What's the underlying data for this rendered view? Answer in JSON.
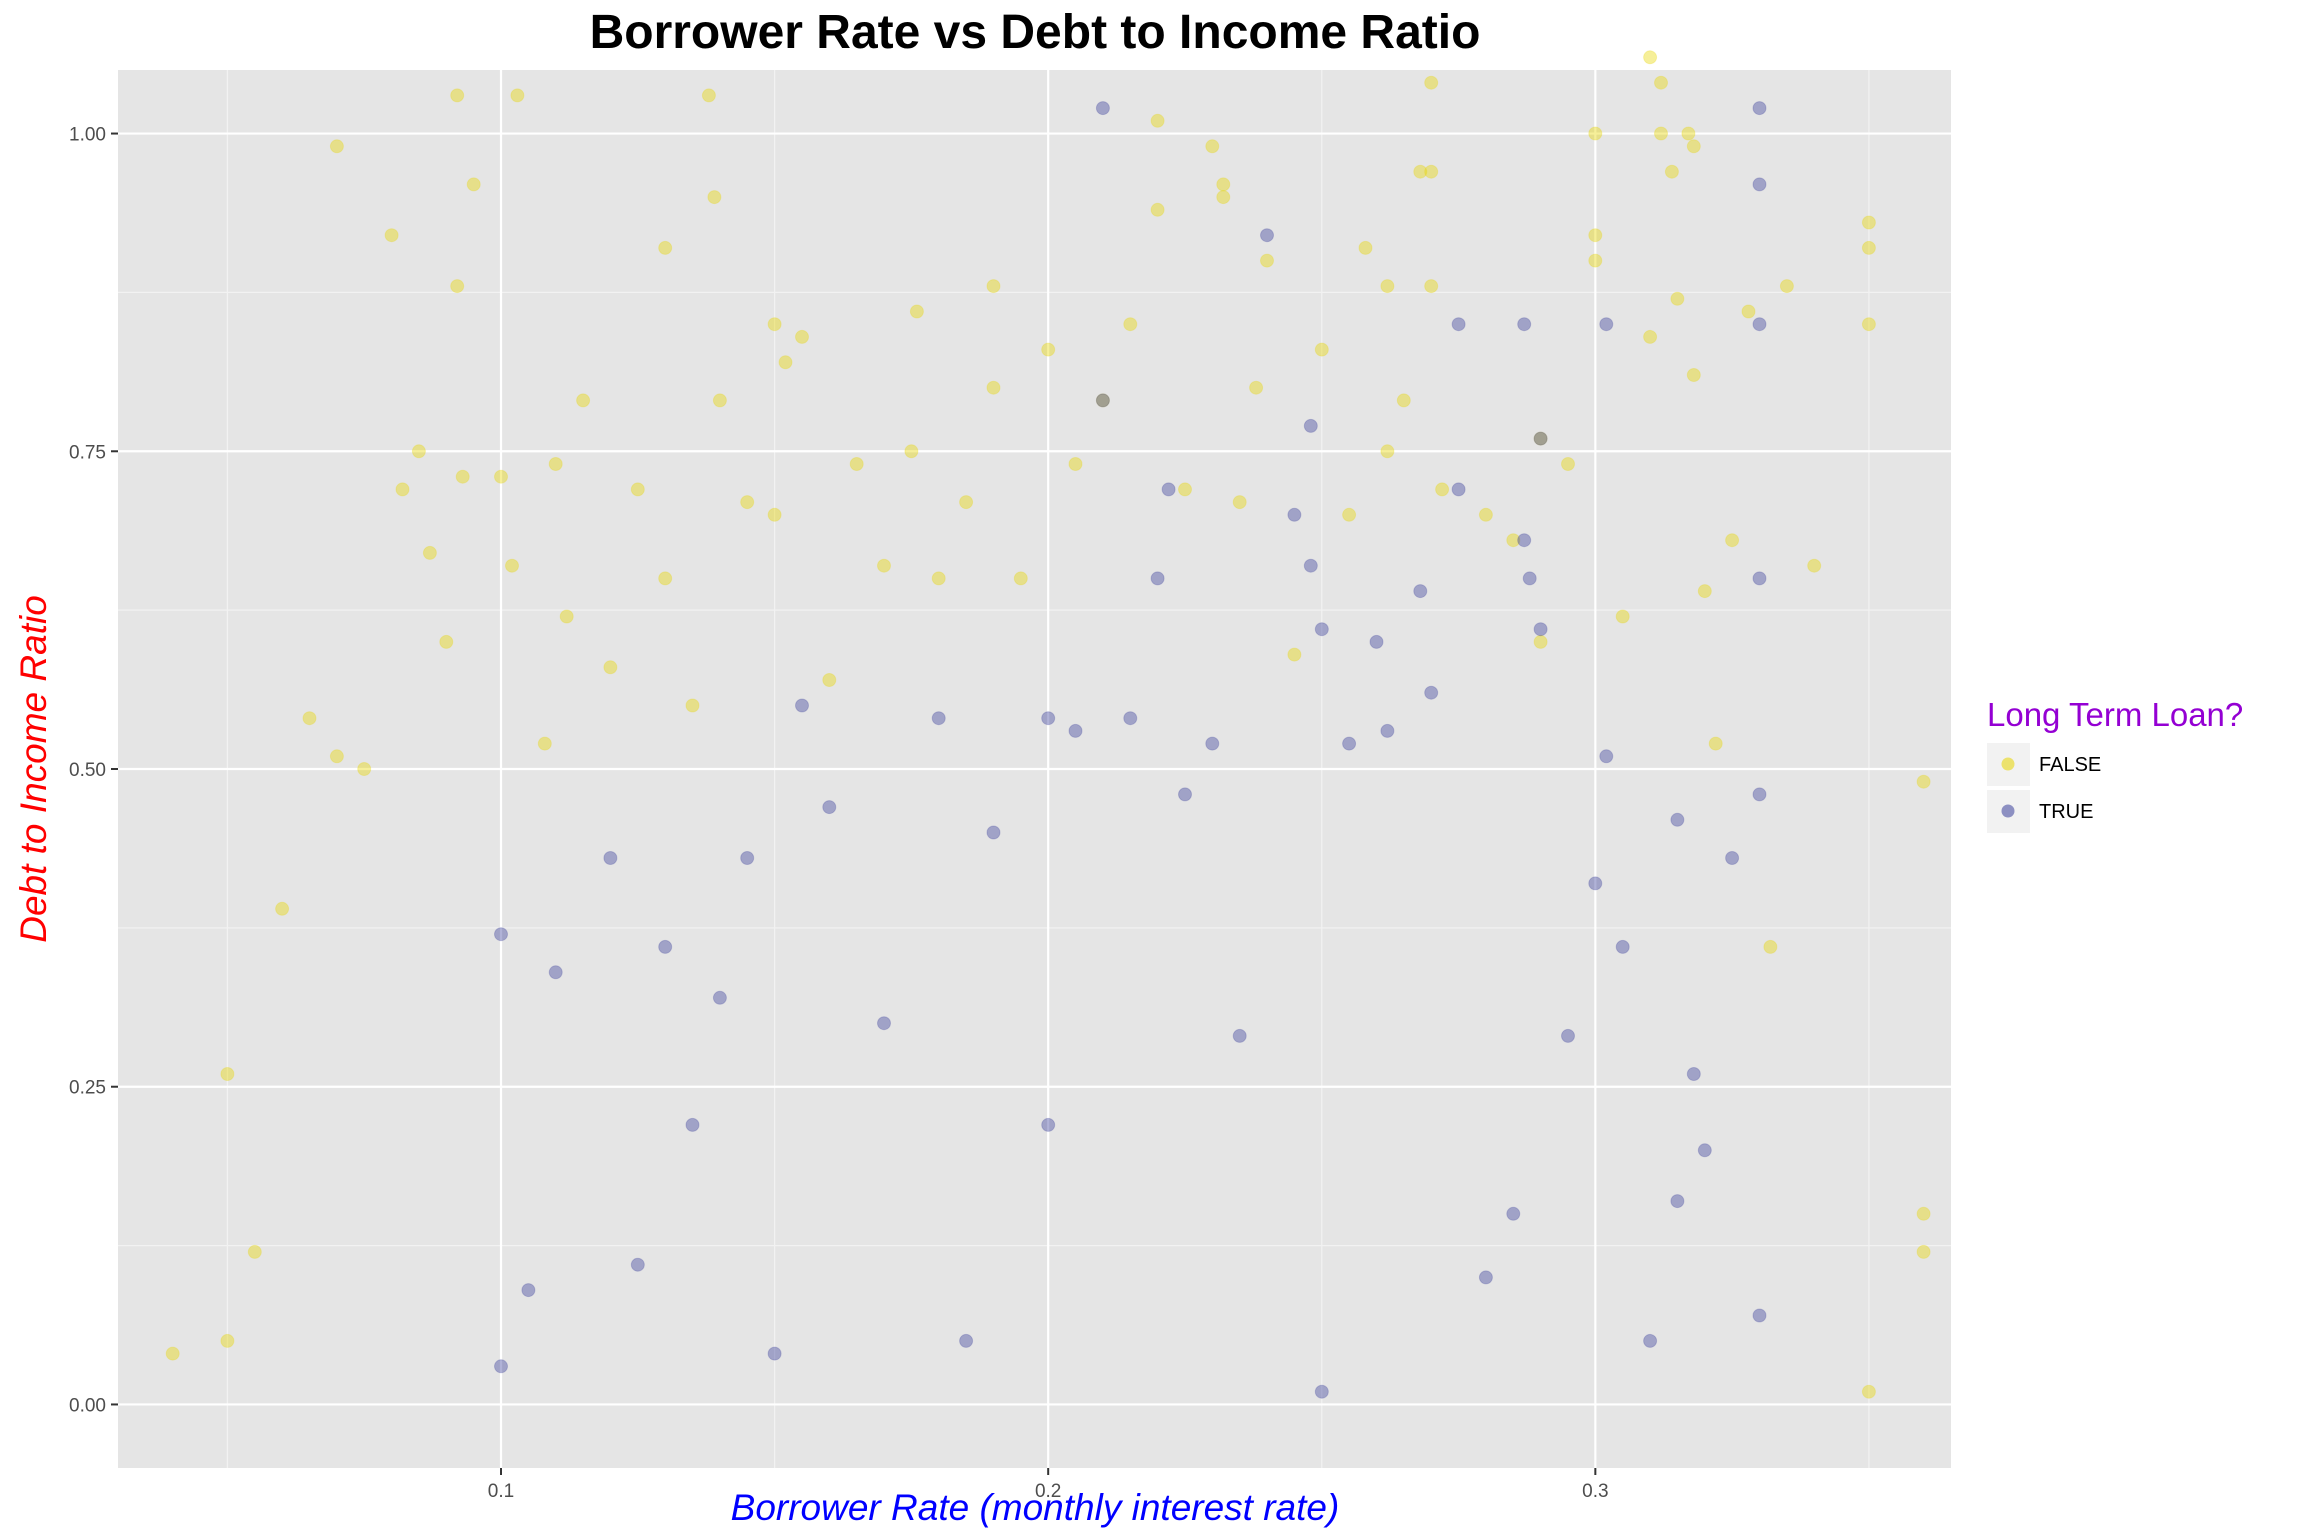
{
  "chart_data": {
    "type": "scatter",
    "title": "Borrower Rate vs Debt to Income Ratio",
    "xlabel": "Borrower Rate (monthly interest rate)",
    "ylabel": "Debt to Income Ratio",
    "xlim": [
      0.03,
      0.365
    ],
    "ylim": [
      -0.05,
      1.05
    ],
    "x_ticks": [
      0.1,
      0.2,
      0.3
    ],
    "x_tick_labels": [
      "0.1",
      "0.2",
      "0.3"
    ],
    "y_ticks": [
      0.0,
      0.25,
      0.5,
      0.75,
      1.0
    ],
    "y_tick_labels": [
      "0.00",
      "0.25",
      "0.50",
      "0.75",
      "1.00"
    ],
    "grid": true,
    "point_alpha": 0.4,
    "legend": {
      "title": "Long Term Loan?",
      "position": "right",
      "entries": [
        "FALSE",
        "TRUE"
      ]
    },
    "colors": {
      "FALSE": "#E8D600",
      "TRUE": "#3A3F9A",
      "title_x": "#0000FF",
      "title_y": "#FF0000",
      "legend_title": "#9400D3",
      "panel_background": "#E5E5E5",
      "grid_major": "#FFFFFF"
    },
    "series": [
      {
        "name": "FALSE",
        "color": "#E8D600",
        "points": [
          [
            0.04,
            0.04
          ],
          [
            0.05,
            0.26
          ],
          [
            0.05,
            0.05
          ],
          [
            0.055,
            0.12
          ],
          [
            0.06,
            0.39
          ],
          [
            0.065,
            0.54
          ],
          [
            0.07,
            0.99
          ],
          [
            0.07,
            0.51
          ],
          [
            0.075,
            0.5
          ],
          [
            0.08,
            0.92
          ],
          [
            0.082,
            0.72
          ],
          [
            0.085,
            0.75
          ],
          [
            0.087,
            0.67
          ],
          [
            0.09,
            0.6
          ],
          [
            0.092,
            0.88
          ],
          [
            0.092,
            1.03
          ],
          [
            0.093,
            0.73
          ],
          [
            0.095,
            0.96
          ],
          [
            0.1,
            0.73
          ],
          [
            0.103,
            1.03
          ],
          [
            0.102,
            0.66
          ],
          [
            0.108,
            0.52
          ],
          [
            0.11,
            0.74
          ],
          [
            0.112,
            0.62
          ],
          [
            0.115,
            0.79
          ],
          [
            0.12,
            0.58
          ],
          [
            0.125,
            0.72
          ],
          [
            0.13,
            0.91
          ],
          [
            0.13,
            0.65
          ],
          [
            0.135,
            0.55
          ],
          [
            0.138,
            1.03
          ],
          [
            0.139,
            0.95
          ],
          [
            0.14,
            0.79
          ],
          [
            0.145,
            0.71
          ],
          [
            0.15,
            0.7
          ],
          [
            0.15,
            0.85
          ],
          [
            0.152,
            0.82
          ],
          [
            0.155,
            0.84
          ],
          [
            0.16,
            0.57
          ],
          [
            0.165,
            0.74
          ],
          [
            0.17,
            0.66
          ],
          [
            0.175,
            0.75
          ],
          [
            0.176,
            0.86
          ],
          [
            0.18,
            0.65
          ],
          [
            0.185,
            0.71
          ],
          [
            0.19,
            0.88
          ],
          [
            0.19,
            0.8
          ],
          [
            0.195,
            0.65
          ],
          [
            0.2,
            0.83
          ],
          [
            0.205,
            0.74
          ],
          [
            0.21,
            0.79
          ],
          [
            0.215,
            0.85
          ],
          [
            0.22,
            1.01
          ],
          [
            0.22,
            0.94
          ],
          [
            0.225,
            0.72
          ],
          [
            0.23,
            0.99
          ],
          [
            0.232,
            0.96
          ],
          [
            0.232,
            0.95
          ],
          [
            0.235,
            0.71
          ],
          [
            0.238,
            0.8
          ],
          [
            0.24,
            0.9
          ],
          [
            0.245,
            0.59
          ],
          [
            0.25,
            0.83
          ],
          [
            0.255,
            0.7
          ],
          [
            0.258,
            0.91
          ],
          [
            0.262,
            0.88
          ],
          [
            0.262,
            0.75
          ],
          [
            0.265,
            0.79
          ],
          [
            0.268,
            0.97
          ],
          [
            0.27,
            0.97
          ],
          [
            0.27,
            1.04
          ],
          [
            0.27,
            0.88
          ],
          [
            0.272,
            0.72
          ],
          [
            0.28,
            0.7
          ],
          [
            0.285,
            0.68
          ],
          [
            0.29,
            0.76
          ],
          [
            0.29,
            0.6
          ],
          [
            0.295,
            0.74
          ],
          [
            0.3,
            1.0
          ],
          [
            0.3,
            0.92
          ],
          [
            0.3,
            0.9
          ],
          [
            0.305,
            0.62
          ],
          [
            0.31,
            0.84
          ],
          [
            0.31,
            1.06
          ],
          [
            0.312,
            1.04
          ],
          [
            0.312,
            1.0
          ],
          [
            0.314,
            0.97
          ],
          [
            0.315,
            0.87
          ],
          [
            0.317,
            1.0
          ],
          [
            0.318,
            0.99
          ],
          [
            0.318,
            0.81
          ],
          [
            0.32,
            0.64
          ],
          [
            0.322,
            0.52
          ],
          [
            0.325,
            0.68
          ],
          [
            0.328,
            0.86
          ],
          [
            0.332,
            0.36
          ],
          [
            0.335,
            0.88
          ],
          [
            0.34,
            0.66
          ],
          [
            0.35,
            0.93
          ],
          [
            0.35,
            0.91
          ],
          [
            0.35,
            0.85
          ],
          [
            0.35,
            0.01
          ],
          [
            0.36,
            0.49
          ],
          [
            0.36,
            0.15
          ],
          [
            0.36,
            0.12
          ]
        ]
      },
      {
        "name": "TRUE",
        "color": "#3A3F9A",
        "points": [
          [
            0.1,
            0.37
          ],
          [
            0.1,
            0.03
          ],
          [
            0.105,
            0.09
          ],
          [
            0.11,
            0.34
          ],
          [
            0.12,
            0.43
          ],
          [
            0.125,
            0.11
          ],
          [
            0.13,
            0.36
          ],
          [
            0.135,
            0.22
          ],
          [
            0.14,
            0.32
          ],
          [
            0.145,
            0.43
          ],
          [
            0.15,
            0.04
          ],
          [
            0.155,
            0.55
          ],
          [
            0.16,
            0.47
          ],
          [
            0.17,
            0.3
          ],
          [
            0.18,
            0.54
          ],
          [
            0.185,
            0.05
          ],
          [
            0.19,
            0.45
          ],
          [
            0.2,
            0.54
          ],
          [
            0.2,
            0.22
          ],
          [
            0.205,
            0.53
          ],
          [
            0.21,
            1.02
          ],
          [
            0.21,
            0.79
          ],
          [
            0.215,
            0.54
          ],
          [
            0.22,
            0.65
          ],
          [
            0.222,
            0.72
          ],
          [
            0.225,
            0.48
          ],
          [
            0.23,
            0.52
          ],
          [
            0.235,
            0.29
          ],
          [
            0.24,
            0.92
          ],
          [
            0.245,
            0.7
          ],
          [
            0.248,
            0.77
          ],
          [
            0.248,
            0.66
          ],
          [
            0.25,
            0.01
          ],
          [
            0.25,
            0.61
          ],
          [
            0.255,
            0.52
          ],
          [
            0.26,
            0.6
          ],
          [
            0.262,
            0.53
          ],
          [
            0.268,
            0.64
          ],
          [
            0.27,
            0.56
          ],
          [
            0.275,
            0.85
          ],
          [
            0.275,
            0.72
          ],
          [
            0.28,
            0.1
          ],
          [
            0.285,
            0.15
          ],
          [
            0.287,
            0.85
          ],
          [
            0.287,
            0.68
          ],
          [
            0.288,
            0.65
          ],
          [
            0.29,
            0.76
          ],
          [
            0.29,
            0.61
          ],
          [
            0.295,
            0.29
          ],
          [
            0.3,
            0.41
          ],
          [
            0.302,
            0.85
          ],
          [
            0.302,
            0.51
          ],
          [
            0.305,
            0.36
          ],
          [
            0.31,
            0.05
          ],
          [
            0.315,
            0.46
          ],
          [
            0.315,
            0.16
          ],
          [
            0.318,
            0.26
          ],
          [
            0.32,
            0.2
          ],
          [
            0.325,
            0.43
          ],
          [
            0.33,
            1.02
          ],
          [
            0.33,
            0.96
          ],
          [
            0.33,
            0.85
          ],
          [
            0.33,
            0.65
          ],
          [
            0.33,
            0.48
          ],
          [
            0.33,
            0.07
          ]
        ]
      }
    ]
  }
}
